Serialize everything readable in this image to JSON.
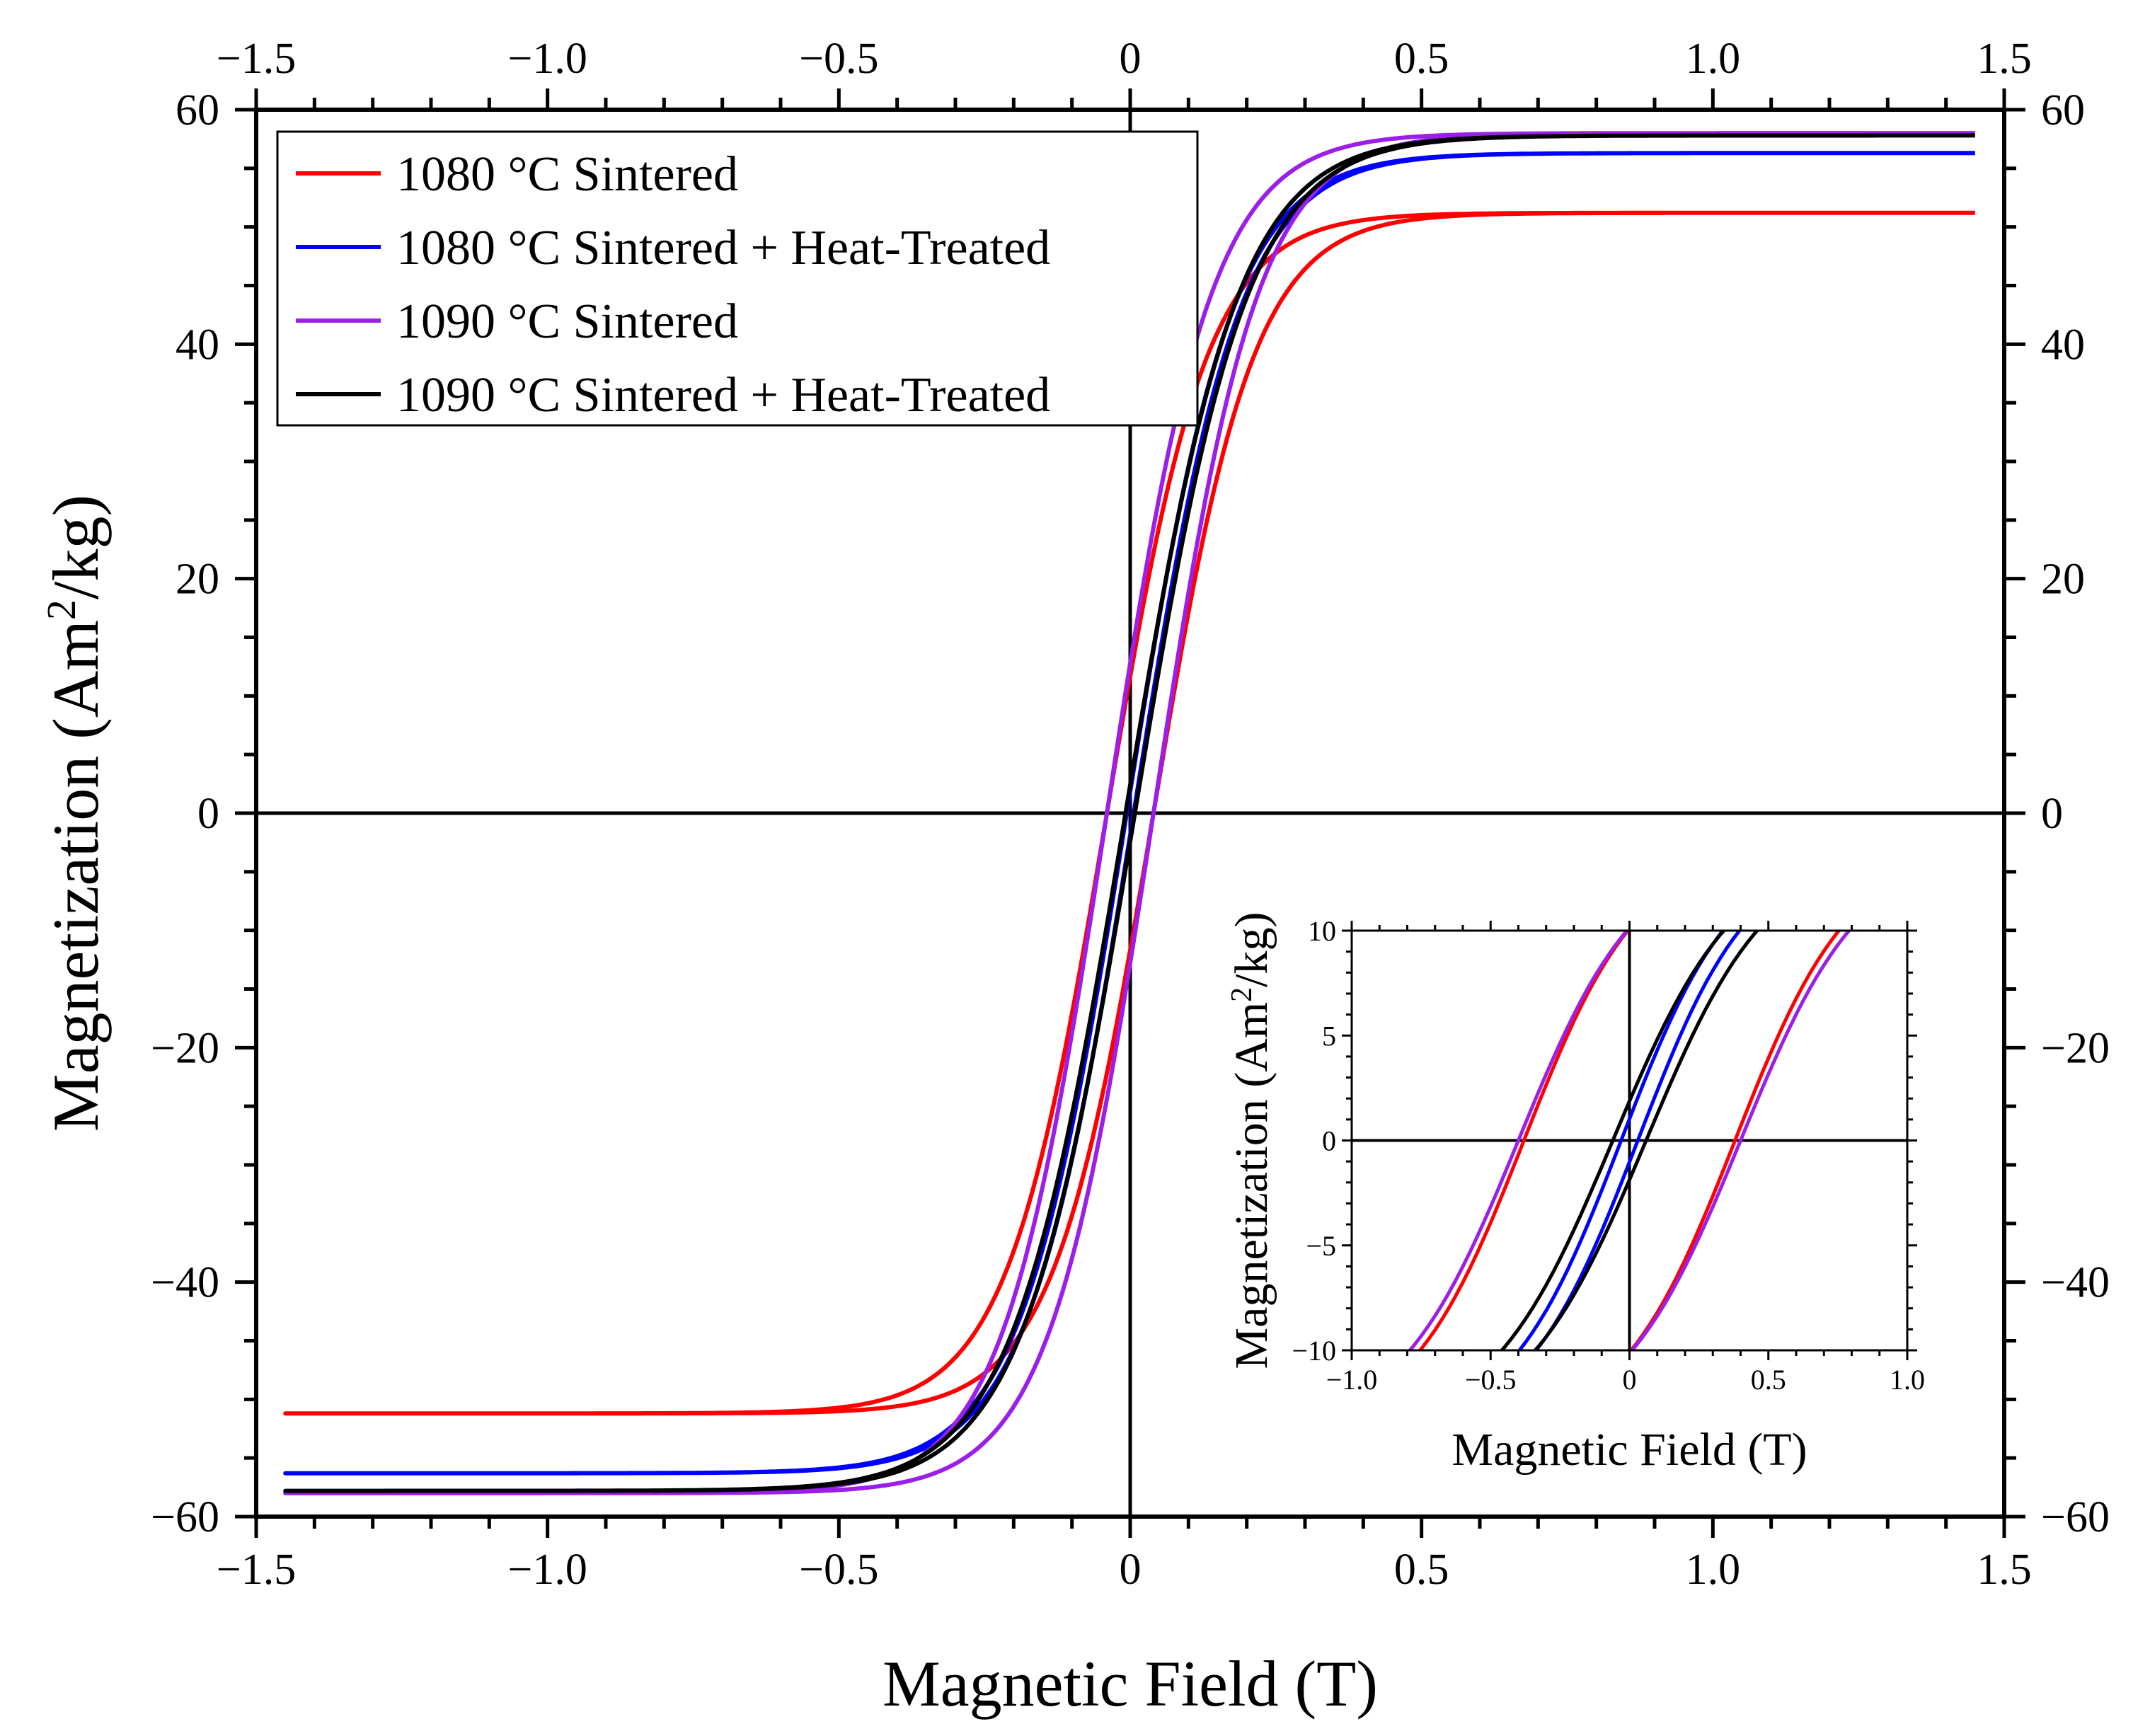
{
  "chart_data": [
    {
      "type": "line",
      "title": "",
      "xlabel": "Magnetic Field (T)",
      "ylabel_main": "Magnetization (Am",
      "ylabel_sup": "2",
      "ylabel_tail": "/kg)",
      "xlim": [
        -1.5,
        1.5
      ],
      "ylim": [
        -60,
        60
      ],
      "x_ticks": [
        -1.5,
        -1.0,
        -0.5,
        0,
        0.5,
        1.0,
        1.5
      ],
      "x_tick_labels": [
        "−1.5",
        "−1.0",
        "−0.5",
        "0",
        "0.5",
        "1.0",
        "1.5"
      ],
      "y_ticks": [
        -60,
        -40,
        -20,
        0,
        20,
        40,
        60
      ],
      "y_tick_labels": [
        "−60",
        "−40",
        "−20",
        "0",
        "20",
        "40",
        "60"
      ],
      "legend_position": "top-left",
      "series": [
        {
          "name": "1080 °C Sintered",
          "color": "#ff0000",
          "ms": 51.2,
          "hc": 0.04,
          "k": 5.8,
          "m0": 7.5
        },
        {
          "name": "1080 °C Sintered + Heat-Treated",
          "color": "#0000ff",
          "ms": 56.3,
          "hc": 0.006,
          "k": 5.5,
          "m0": 1.2
        },
        {
          "name": "1090 °C Sintered",
          "color": "#9b1fe8",
          "ms": 58.0,
          "hc": 0.04,
          "k": 5.6,
          "m0": 8.3
        },
        {
          "name": "1090 °C Sintered + Heat-Treated",
          "color": "#000000",
          "ms": 57.8,
          "hc": 0.008,
          "k": 5.2,
          "m0": 1.6
        }
      ]
    },
    {
      "type": "line",
      "title": "inset",
      "xlabel": "Magnetic Field (T)",
      "ylabel_main": "Magnetization (Am",
      "ylabel_sup": "2",
      "ylabel_tail": "/kg)",
      "xlim": [
        -1.0,
        1.0
      ],
      "ylim": [
        -10,
        10
      ],
      "x_ticks": [
        -1.0,
        -0.5,
        0,
        0.5,
        1.0
      ],
      "x_tick_labels": [
        "−1.0",
        "−0.5",
        "0",
        "0.5",
        "1.0"
      ],
      "y_ticks": [
        -10,
        -5,
        0,
        5,
        10
      ],
      "y_tick_labels": [
        "−10",
        "−5",
        "0",
        "5",
        "10"
      ]
    }
  ]
}
